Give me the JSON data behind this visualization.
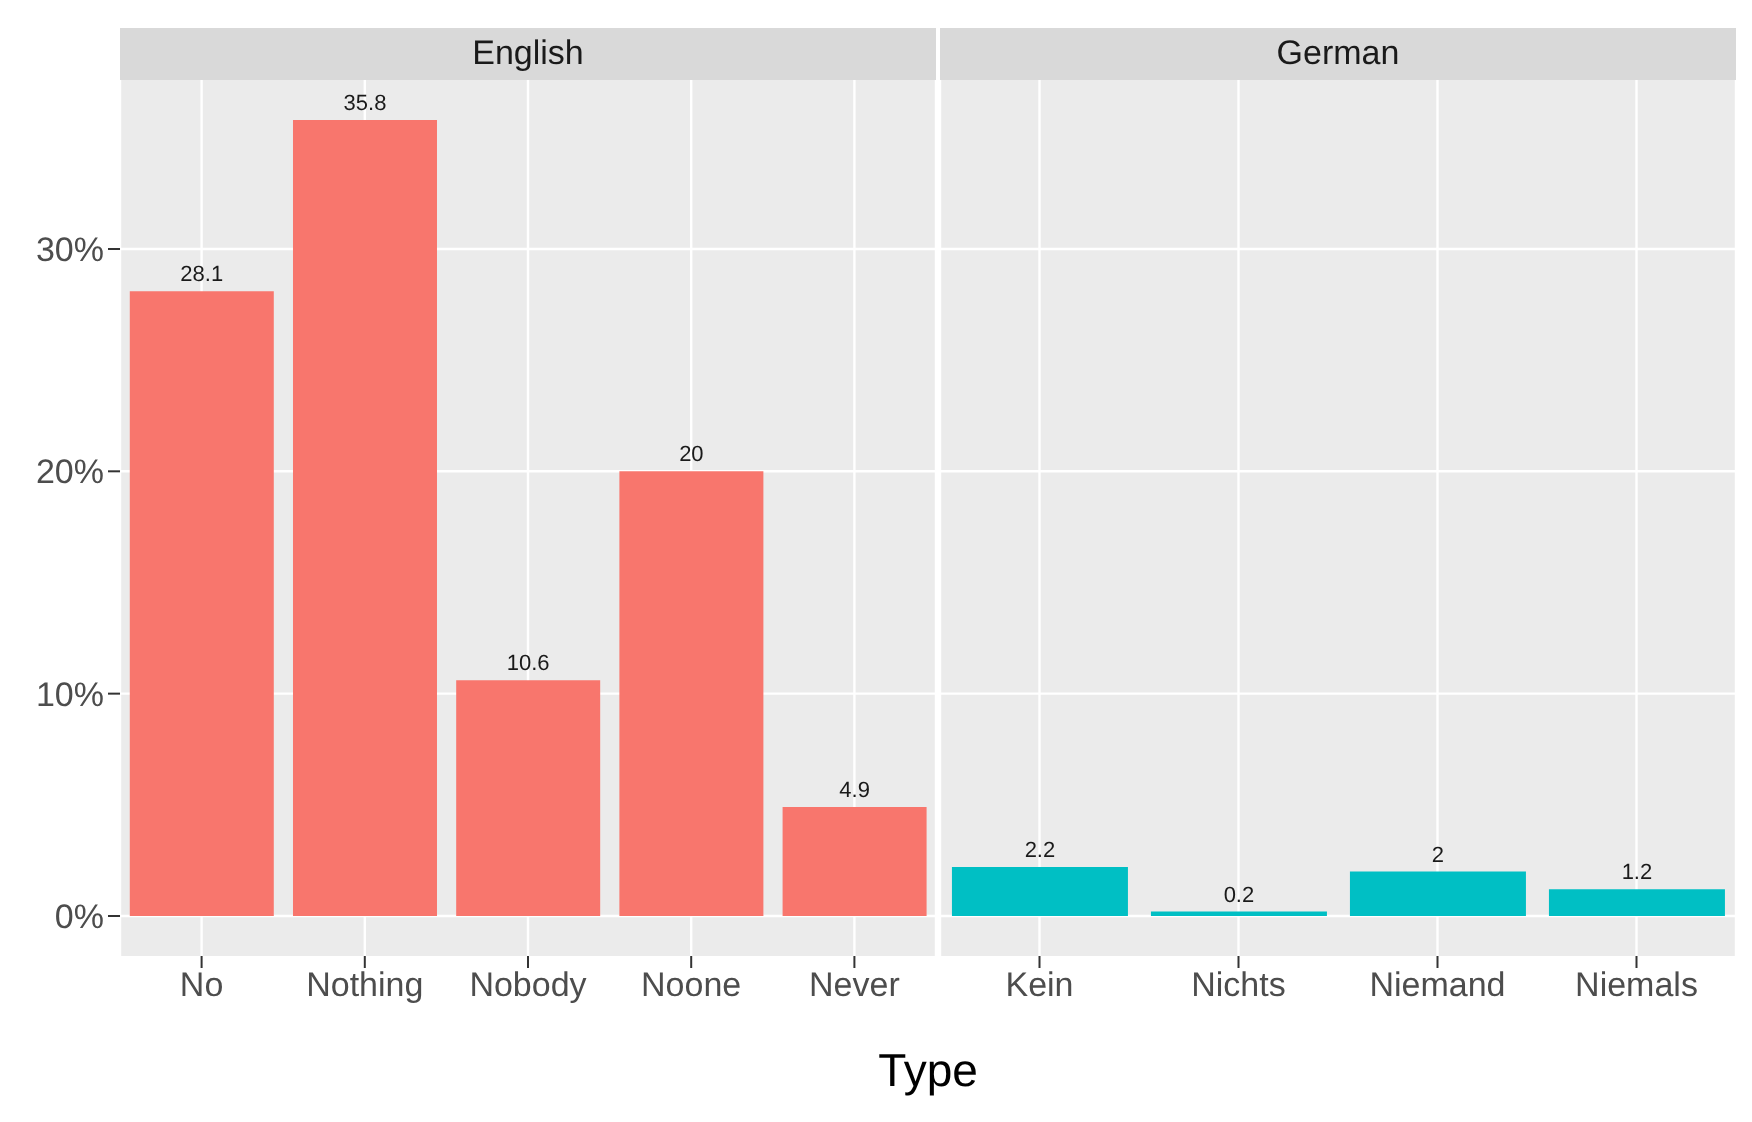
{
  "chart_data": [
    {
      "type": "bar",
      "title": "English",
      "xlabel": "Type",
      "categories": [
        "No",
        "Nothing",
        "Nobody",
        "Noone",
        "Never"
      ],
      "values": [
        28.1,
        35.8,
        10.6,
        20,
        4.9
      ],
      "color": "#f8766d",
      "ylim": [
        -1.8,
        37.6
      ],
      "yticks": [
        {
          "value": 0,
          "label": "0%"
        },
        {
          "value": 10,
          "label": "10%"
        },
        {
          "value": 20,
          "label": "20%"
        },
        {
          "value": 30,
          "label": "30%"
        }
      ],
      "grid": true,
      "data_labels": true,
      "legend": false
    },
    {
      "type": "bar",
      "title": "German",
      "categories": [
        "Kein",
        "Nichts",
        "Niemand",
        "Niemals"
      ],
      "values": [
        2.2,
        0.2,
        2,
        1.2
      ],
      "color": "#00bfc4",
      "ylim": [
        -1.8,
        37.6
      ],
      "yticks": [
        0,
        10,
        20,
        30
      ],
      "grid": true,
      "data_labels": true,
      "legend": false,
      "tick_labels": "x"
    }
  ]
}
